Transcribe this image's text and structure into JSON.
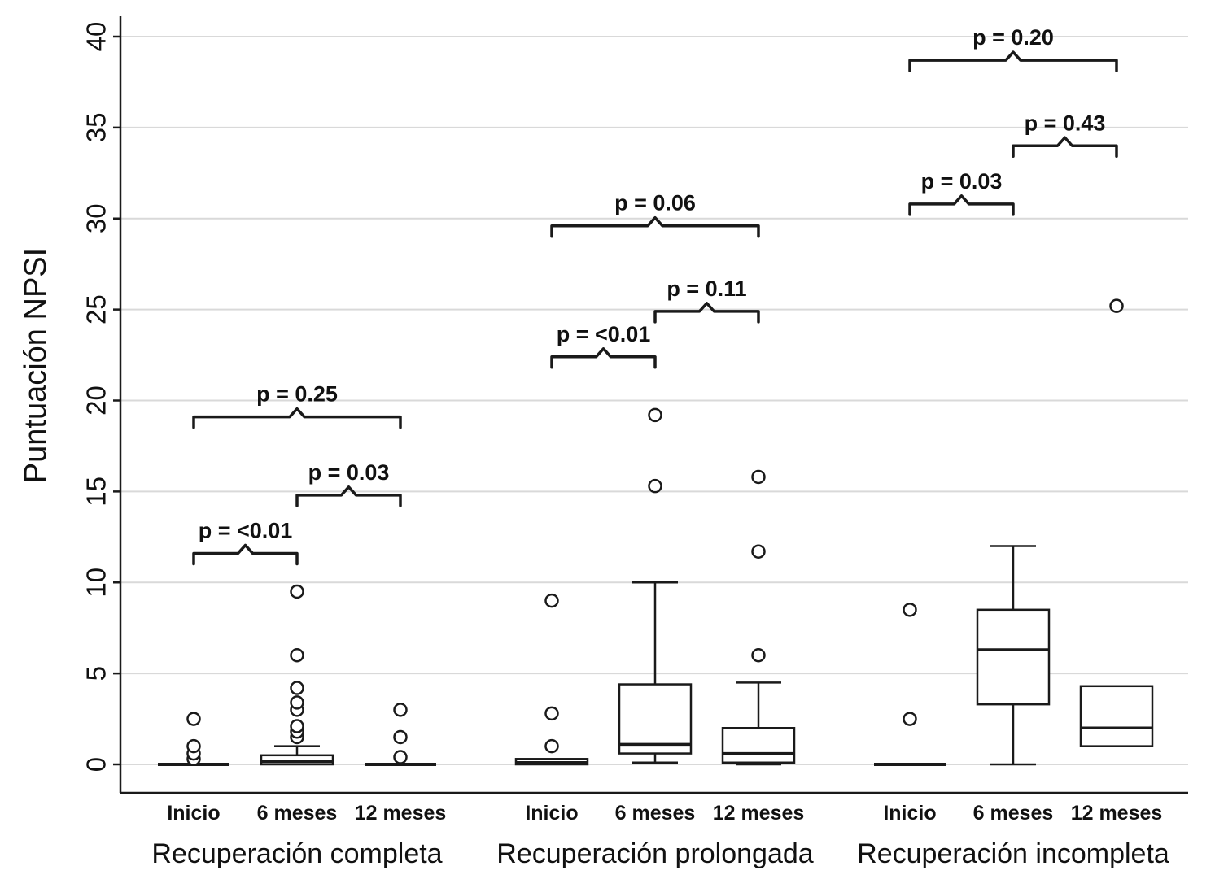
{
  "figure": {
    "background": "#ffffff"
  },
  "chart_data": {
    "type": "boxplot",
    "title": "",
    "ylabel": "Puntuación NPSI",
    "xlabel": "",
    "ylim": [
      0,
      40
    ],
    "yticks": [
      0,
      5,
      10,
      15,
      20,
      25,
      30,
      35,
      40
    ],
    "grid": true,
    "legend": "none",
    "colors": {
      "stroke": "#1a1a1a",
      "box_fill": "#ffffff",
      "gridline": "#d9d9d9",
      "background": "#ffffff"
    },
    "groups": [
      {
        "label": "Recuperación completa",
        "boxes": [
          {
            "timepoint": "Inicio",
            "whisker_low": 0,
            "q1": 0,
            "median": 0,
            "q3": 0,
            "whisker_high": 0,
            "outliers": [
              0.3,
              0.6,
              1.0,
              2.5
            ]
          },
          {
            "timepoint": "6 meses",
            "whisker_low": 0,
            "q1": 0,
            "median": 0.15,
            "q3": 0.5,
            "whisker_high": 1.0,
            "outliers": [
              1.5,
              1.8,
              2.1,
              3.0,
              3.4,
              4.2,
              6.0,
              9.5
            ]
          },
          {
            "timepoint": "12 meses",
            "whisker_low": 0,
            "q1": 0,
            "median": 0,
            "q3": 0,
            "whisker_high": 0,
            "outliers": [
              0.4,
              1.5,
              3.0
            ]
          }
        ],
        "comparisons": [
          {
            "label": "p = <0.01",
            "from": 0,
            "to": 1,
            "y": 11.6
          },
          {
            "label": "p = 0.03",
            "from": 1,
            "to": 2,
            "y": 14.8
          },
          {
            "label": "p = 0.25",
            "from": 0,
            "to": 2,
            "y": 19.1
          }
        ]
      },
      {
        "label": "Recuperación prolongada",
        "boxes": [
          {
            "timepoint": "Inicio",
            "whisker_low": 0,
            "q1": 0,
            "median": 0.1,
            "q3": 0.3,
            "whisker_high": 0.3,
            "outliers": [
              1.0,
              2.8,
              9.0
            ]
          },
          {
            "timepoint": "6 meses",
            "whisker_low": 0.1,
            "q1": 0.6,
            "median": 1.1,
            "q3": 4.4,
            "whisker_high": 10.0,
            "outliers": [
              15.3,
              19.2
            ]
          },
          {
            "timepoint": "12 meses",
            "whisker_low": 0,
            "q1": 0.1,
            "median": 0.6,
            "q3": 2.0,
            "whisker_high": 4.5,
            "outliers": [
              6.0,
              11.7,
              15.8
            ]
          }
        ],
        "comparisons": [
          {
            "label": "p = <0.01",
            "from": 0,
            "to": 1,
            "y": 22.4
          },
          {
            "label": "p = 0.11",
            "from": 1,
            "to": 2,
            "y": 24.9
          },
          {
            "label": "p = 0.06",
            "from": 0,
            "to": 2,
            "y": 29.6
          }
        ]
      },
      {
        "label": "Recuperación incompleta",
        "boxes": [
          {
            "timepoint": "Inicio",
            "whisker_low": 0,
            "q1": 0,
            "median": 0,
            "q3": 0,
            "whisker_high": 0,
            "outliers": [
              2.5,
              8.5
            ]
          },
          {
            "timepoint": "6 meses",
            "whisker_low": 0,
            "q1": 3.3,
            "median": 6.3,
            "q3": 8.5,
            "whisker_high": 12.0,
            "outliers": []
          },
          {
            "timepoint": "12 meses",
            "whisker_low": 1.0,
            "q1": 1.0,
            "median": 2.0,
            "q3": 4.3,
            "whisker_high": 4.3,
            "outliers": [
              25.2
            ]
          }
        ],
        "comparisons": [
          {
            "label": "p = 0.03",
            "from": 0,
            "to": 1,
            "y": 30.8
          },
          {
            "label": "p = 0.43",
            "from": 1,
            "to": 2,
            "y": 34.0
          },
          {
            "label": "p = 0.20",
            "from": 0,
            "to": 2,
            "y": 38.7
          }
        ]
      }
    ]
  }
}
